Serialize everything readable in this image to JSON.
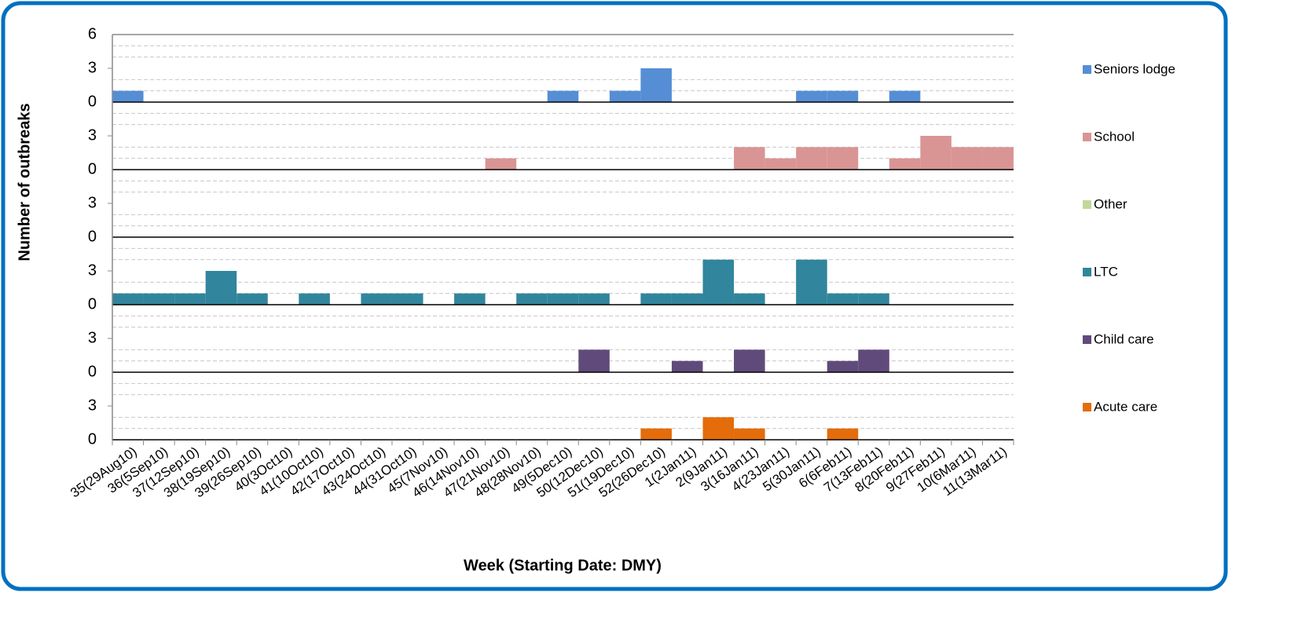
{
  "chart_data": {
    "type": "bar",
    "y_label": "Number of outbreaks",
    "x_label": "Week (Starting Date: DMY)",
    "categories": [
      "35(29Aug10)",
      "36(5Sep10)",
      "37(12Sep10)",
      "38(19Sep10)",
      "39(26Sep10)",
      "40(3Oct10)",
      "41(10Oct10)",
      "42(17Oct10)",
      "43(24Oct10)",
      "44(31Oct10)",
      "45(7Nov10)",
      "46(14Nov10)",
      "47(21Nov10)",
      "48(28Nov10)",
      "49(5Dec10)",
      "50(12Dec10)",
      "51(19Dec10)",
      "52(26Dec10)",
      "1(2Jan11)",
      "2(9Jan11)",
      "3(16Jan11)",
      "4(23Jan11)",
      "5(30Jan11)",
      "6(6Feb11)",
      "7(13Feb11)",
      "8(20Feb11)",
      "9(27Feb11)",
      "10(6Mar11)",
      "11(13Mar11)"
    ],
    "series": [
      {
        "name": "Seniors lodge",
        "color": "#558ed5",
        "values": [
          1,
          0,
          0,
          0,
          0,
          0,
          0,
          0,
          0,
          0,
          0,
          0,
          0,
          0,
          1,
          0,
          1,
          3,
          0,
          0,
          0,
          0,
          1,
          1,
          0,
          1,
          0,
          0,
          0
        ]
      },
      {
        "name": "School",
        "color": "#d99594",
        "values": [
          0,
          0,
          0,
          0,
          0,
          0,
          0,
          0,
          0,
          0,
          0,
          0,
          1,
          0,
          0,
          0,
          0,
          0,
          0,
          0,
          2,
          1,
          2,
          2,
          0,
          1,
          3,
          2,
          2
        ]
      },
      {
        "name": "Other",
        "color": "#c3d69b",
        "values": [
          0,
          0,
          0,
          0,
          0,
          0,
          0,
          0,
          0,
          0,
          0,
          0,
          0,
          0,
          0,
          0,
          0,
          0,
          0,
          0,
          0,
          0,
          0,
          0,
          0,
          0,
          0,
          0,
          0
        ]
      },
      {
        "name": "LTC",
        "color": "#31859c",
        "values": [
          1,
          1,
          1,
          3,
          1,
          0,
          1,
          0,
          1,
          1,
          0,
          1,
          0,
          1,
          1,
          1,
          0,
          1,
          1,
          4,
          1,
          0,
          4,
          1,
          1,
          0,
          0,
          0,
          0
        ]
      },
      {
        "name": "Child care",
        "color": "#604a7b",
        "values": [
          0,
          0,
          0,
          0,
          0,
          0,
          0,
          0,
          0,
          0,
          0,
          0,
          0,
          0,
          0,
          2,
          0,
          0,
          1,
          0,
          2,
          0,
          0,
          1,
          2,
          0,
          0,
          0,
          0
        ]
      },
      {
        "name": "Acute care",
        "color": "#e46c0a",
        "values": [
          0,
          0,
          0,
          0,
          0,
          0,
          0,
          0,
          0,
          0,
          0,
          0,
          0,
          0,
          0,
          0,
          0,
          1,
          0,
          2,
          1,
          0,
          0,
          1,
          0,
          0,
          0,
          0,
          0
        ]
      }
    ],
    "ylim": [
      0,
      6
    ],
    "yticks": [
      0,
      3,
      6
    ],
    "minor_yticks": [
      1,
      2,
      4,
      5
    ],
    "grid": true,
    "legend": "right"
  }
}
